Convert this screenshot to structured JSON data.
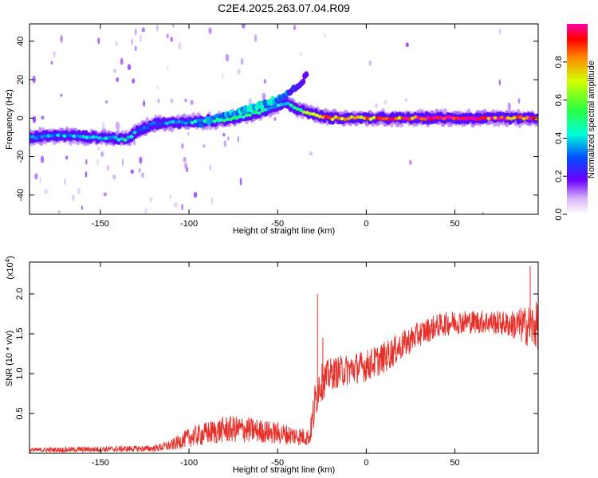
{
  "title": "C2E4.2025.263.07.04.R09",
  "chart_data": [
    {
      "type": "heatmap",
      "name": "spectrogram",
      "xlabel": "Height of straight line (km)",
      "ylabel": "Frequency (Hz)",
      "xlim": [
        -190,
        97
      ],
      "ylim": [
        -50,
        49
      ],
      "x_ticks": [
        -150,
        -100,
        -50,
        0,
        50
      ],
      "y_ticks": [
        -40,
        -20,
        0,
        20,
        40
      ],
      "colorbar": {
        "label": "Normalized spectral amplitude",
        "range": [
          0,
          1
        ],
        "ticks": [
          0.0,
          0.2,
          0.4,
          0.6,
          0.8
        ]
      },
      "ridge": {
        "x": [
          -190,
          -170,
          -150,
          -135,
          -128,
          -120,
          -100,
          -80,
          -60,
          -45,
          -40,
          -30,
          -20,
          0,
          50,
          95
        ],
        "y": [
          -10,
          -9,
          -10,
          -11,
          -6,
          -3,
          -2,
          -1,
          3,
          8,
          5,
          2,
          0,
          0,
          0,
          0
        ],
        "amplitude": [
          0.35,
          0.4,
          0.4,
          0.45,
          0.3,
          0.3,
          0.4,
          0.45,
          0.5,
          0.35,
          0.5,
          0.7,
          0.9,
          0.9,
          0.95,
          0.95
        ]
      },
      "arm": {
        "x": [
          -95,
          -80,
          -65,
          -55,
          -45,
          -38,
          -33
        ],
        "y": [
          -3,
          1,
          5,
          8,
          12,
          17,
          23
        ],
        "amplitude": [
          0.3,
          0.35,
          0.4,
          0.4,
          0.3,
          0.2,
          0.15
        ]
      }
    },
    {
      "type": "line",
      "name": "snr",
      "xlabel": "Height of straight line (km)",
      "ylabel": "SNR (10 * v/v)",
      "y_exponent": "(x10",
      "y_exponent_power": "4",
      "y_exponent_close": ")",
      "xlim": [
        -190,
        97
      ],
      "ylim": [
        0,
        24000
      ],
      "x_ticks": [
        -150,
        -100,
        -50,
        0,
        50
      ],
      "y_ticks": [
        5000,
        10000,
        15000,
        20000
      ],
      "y_tick_labels": [
        "0.5",
        "1.0",
        "1.5",
        "2.0"
      ],
      "color": "#e8302a",
      "envelope": {
        "x": [
          -190,
          -120,
          -110,
          -100,
          -90,
          -80,
          -70,
          -60,
          -50,
          -40,
          -32,
          -29,
          -27,
          -20,
          -10,
          0,
          10,
          20,
          30,
          40,
          50,
          60,
          70,
          80,
          90,
          95
        ],
        "y": [
          400,
          600,
          1000,
          2000,
          2500,
          3000,
          3000,
          2800,
          2500,
          2200,
          2000,
          6000,
          8500,
          10000,
          10500,
          11000,
          12000,
          13500,
          15000,
          16000,
          16500,
          16500,
          16500,
          16200,
          16000,
          16000
        ],
        "noise": [
          300,
          400,
          700,
          1200,
          1500,
          1700,
          1700,
          1500,
          1400,
          1200,
          1100,
          3000,
          2500,
          2000,
          2000,
          2000,
          2000,
          1800,
          1600,
          1500,
          1500,
          1500,
          1500,
          1600,
          2500,
          3000
        ]
      },
      "spikes": [
        {
          "x": -27.5,
          "y": 20000
        },
        {
          "x": -24.5,
          "y": 14500
        },
        {
          "x": 92.5,
          "y": 23500
        }
      ]
    }
  ]
}
